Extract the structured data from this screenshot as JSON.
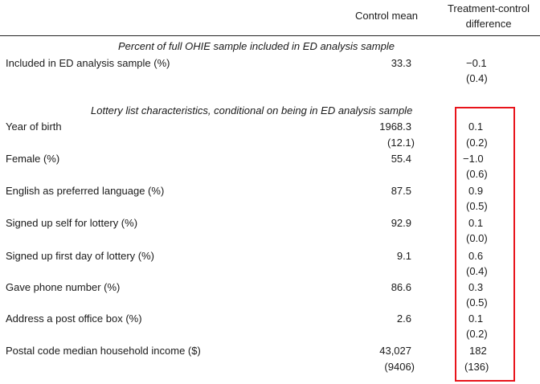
{
  "header": {
    "control_mean": "Control mean",
    "diff_line1": "Treatment-control",
    "diff_line2": "difference"
  },
  "section1": {
    "title": "Percent of full OHIE sample included in ED analysis sample",
    "rows": [
      {
        "label": "Included in ED analysis sample (%)",
        "mean": "33.3",
        "mean_sd": "",
        "diff": "−0.1",
        "diff_se": "(0.4)"
      }
    ]
  },
  "section2": {
    "title": "Lottery list characteristics, conditional on being in ED analysis sample",
    "rows": [
      {
        "label": "Year of birth",
        "mean": "1968.3",
        "mean_sd": "(12.1)",
        "diff": "0.1",
        "diff_se": "(0.2)"
      },
      {
        "label": "Female (%)",
        "mean": "55.4",
        "mean_sd": "",
        "diff": "−1.0",
        "diff_se": "(0.6)"
      },
      {
        "label": "English as preferred language (%)",
        "mean": "87.5",
        "mean_sd": "",
        "diff": "0.9",
        "diff_se": "(0.5)"
      },
      {
        "label": "Signed up self for lottery (%)",
        "mean": "92.9",
        "mean_sd": "",
        "diff": "0.1",
        "diff_se": "(0.0)"
      },
      {
        "label": "Signed up first day of lottery (%)",
        "mean": "9.1",
        "mean_sd": "",
        "diff": "0.6",
        "diff_se": "(0.4)"
      },
      {
        "label": "Gave phone number (%)",
        "mean": "86.6",
        "mean_sd": "",
        "diff": "0.3",
        "diff_se": "(0.5)"
      },
      {
        "label": "Address a post office box (%)",
        "mean": "2.6",
        "mean_sd": "",
        "diff": "0.1",
        "diff_se": "(0.2)"
      },
      {
        "label": "Postal code median household income ($)",
        "mean": "43,027",
        "mean_sd": "(9406)",
        "diff": "182",
        "diff_se": "(136)"
      }
    ]
  }
}
